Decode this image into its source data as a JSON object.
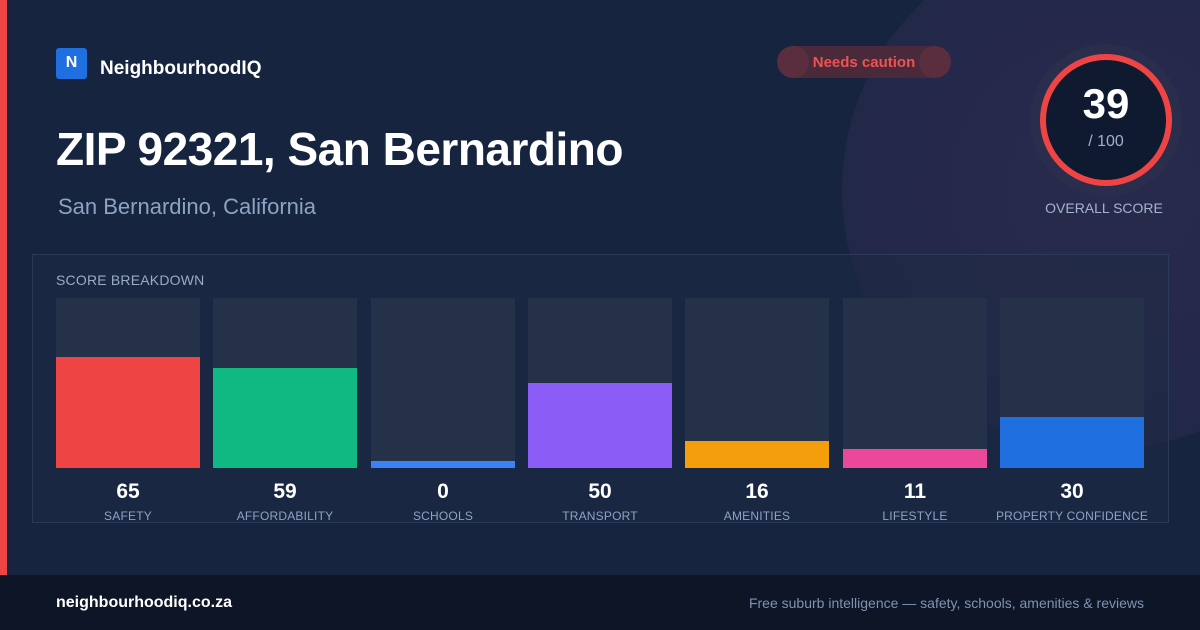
{
  "brand": {
    "logo_letter": "N",
    "name": "NeighbourhoodIQ",
    "logo_color": "#1f6fe0"
  },
  "badge": {
    "label": "Needs caution",
    "color": "#f05252"
  },
  "header": {
    "title": "ZIP 92321, San Bernardino",
    "subtitle": "San Bernardino, California"
  },
  "overall": {
    "score": "39",
    "max_label": "/ 100",
    "score_value": 39,
    "max": 100,
    "caption": "OVERALL SCORE",
    "ring_color": "#ef4444"
  },
  "panel": {
    "title": "SCORE BREAKDOWN"
  },
  "chart_data": {
    "type": "bar",
    "title": "SCORE BREAKDOWN",
    "categories": [
      "SAFETY",
      "AFFORDABILITY",
      "SCHOOLS",
      "TRANSPORT",
      "AMENITIES",
      "LIFESTYLE",
      "PROPERTY CONFIDENCE"
    ],
    "values": [
      65,
      59,
      0,
      50,
      16,
      11,
      30
    ],
    "colors": [
      "#ef4444",
      "#10b981",
      "#3b82f6",
      "#8b5cf6",
      "#f59e0b",
      "#ec4899",
      "#1f6fe0"
    ],
    "ylim": [
      0,
      100
    ],
    "grid": false
  },
  "footer": {
    "site": "neighbourhoodiq.co.za",
    "tagline": "Free suburb intelligence — safety, schools, amenities & reviews"
  }
}
